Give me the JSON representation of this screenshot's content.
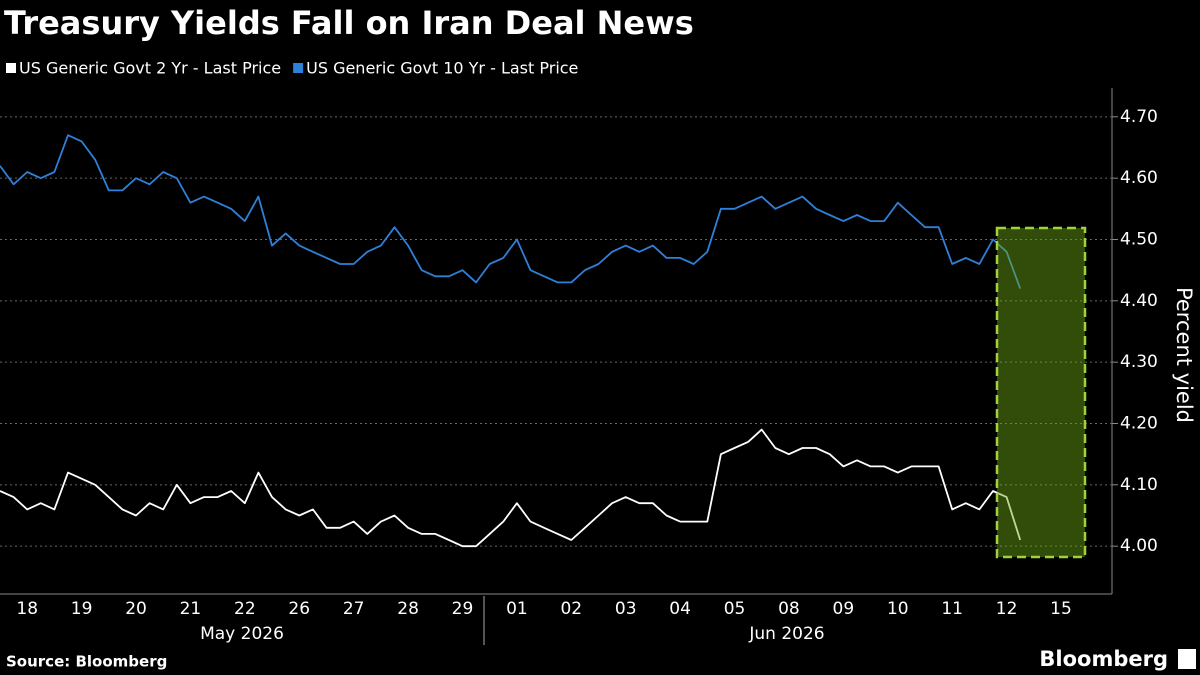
{
  "chart_data": {
    "type": "line",
    "title": "Treasury Yields Fall on Iran Deal News",
    "y_label": "Percent yield",
    "source": "Source: Bloomberg",
    "brand": "Bloomberg",
    "month_labels": [
      "May 2026",
      "Jun 2026"
    ],
    "categories": [
      "18",
      null,
      null,
      null,
      "19",
      null,
      null,
      null,
      "20",
      null,
      null,
      null,
      "21",
      null,
      null,
      null,
      "22",
      null,
      null,
      null,
      "26",
      null,
      null,
      null,
      "27",
      null,
      null,
      null,
      "28",
      null,
      null,
      null,
      "29",
      null,
      null,
      null,
      "01",
      null,
      null,
      null,
      "02",
      null,
      null,
      null,
      "03",
      null,
      null,
      null,
      "04",
      null,
      null,
      null,
      "05",
      null,
      null,
      null,
      "08",
      null,
      null,
      null,
      "09",
      null,
      null,
      null,
      "10",
      null,
      null,
      null,
      "11",
      null,
      null,
      null,
      "12",
      null,
      null,
      null,
      "15",
      null,
      null,
      null
    ],
    "series": [
      {
        "name": "US Generic Govt 2 Yr - Last Price",
        "color": "#ffffff",
        "values": [
          4.09,
          4.08,
          4.06,
          4.07,
          4.06,
          4.12,
          4.11,
          4.1,
          4.08,
          4.06,
          4.05,
          4.07,
          4.06,
          4.1,
          4.07,
          4.08,
          4.08,
          4.09,
          4.07,
          4.12,
          4.08,
          4.06,
          4.05,
          4.06,
          4.03,
          4.03,
          4.04,
          4.02,
          4.04,
          4.05,
          4.03,
          4.02,
          4.02,
          4.01,
          4.0,
          4.0,
          4.02,
          4.04,
          4.07,
          4.04,
          4.03,
          4.02,
          4.01,
          4.03,
          4.05,
          4.07,
          4.08,
          4.07,
          4.07,
          4.05,
          4.04,
          4.04,
          4.04,
          4.15,
          4.16,
          4.17,
          4.19,
          4.16,
          4.15,
          4.16,
          4.16,
          4.15,
          4.13,
          4.14,
          4.13,
          4.13,
          4.12,
          4.13,
          4.13,
          4.13,
          4.06,
          4.07,
          4.06,
          4.09,
          4.08,
          4.01,
          null,
          null,
          null,
          null
        ]
      },
      {
        "name": "US Generic Govt 10 Yr - Last Price",
        "color": "#2f80d8",
        "values": [
          4.62,
          4.59,
          4.61,
          4.6,
          4.61,
          4.67,
          4.66,
          4.63,
          4.58,
          4.58,
          4.6,
          4.59,
          4.61,
          4.6,
          4.56,
          4.57,
          4.56,
          4.55,
          4.53,
          4.57,
          4.49,
          4.51,
          4.49,
          4.48,
          4.47,
          4.46,
          4.46,
          4.48,
          4.49,
          4.52,
          4.49,
          4.45,
          4.44,
          4.44,
          4.45,
          4.43,
          4.46,
          4.47,
          4.5,
          4.45,
          4.44,
          4.43,
          4.43,
          4.45,
          4.46,
          4.48,
          4.49,
          4.48,
          4.49,
          4.47,
          4.47,
          4.46,
          4.48,
          4.55,
          4.55,
          4.56,
          4.57,
          4.55,
          4.56,
          4.57,
          4.55,
          4.54,
          4.53,
          4.54,
          4.53,
          4.53,
          4.56,
          4.54,
          4.52,
          4.52,
          4.46,
          4.47,
          4.46,
          4.5,
          4.48,
          4.42,
          null,
          null,
          null,
          null
        ]
      }
    ],
    "ylim": [
      3.922,
      4.747
    ],
    "yticks": [
      {
        "value": 4.0,
        "label": "4.00"
      },
      {
        "value": 4.1,
        "label": "4.10"
      },
      {
        "value": 4.2,
        "label": "4.20"
      },
      {
        "value": 4.3,
        "label": "4.30"
      },
      {
        "value": 4.4,
        "label": "4.40"
      },
      {
        "value": 4.5,
        "label": "4.50"
      },
      {
        "value": 4.6,
        "label": "4.60"
      },
      {
        "value": 4.7,
        "label": "4.70"
      }
    ],
    "grid": true
  }
}
